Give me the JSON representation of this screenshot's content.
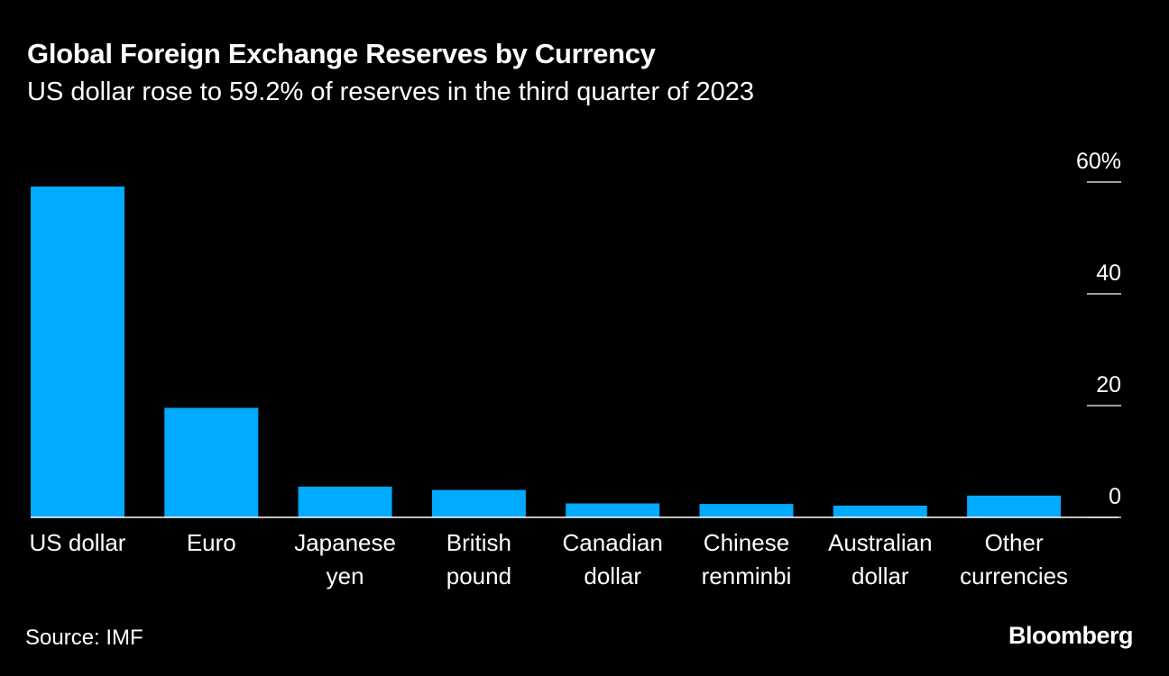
{
  "header": {
    "title": "Global Foreign Exchange Reserves by Currency",
    "subtitle": "US dollar rose to 59.2% of reserves in the third quarter of 2023"
  },
  "footer": {
    "source": "Source: IMF",
    "brand": "Bloomberg"
  },
  "colors": {
    "background": "#000000",
    "bar": "#00aaff",
    "text": "#ffffff"
  },
  "chart_data": {
    "type": "bar",
    "title": "Global Foreign Exchange Reserves by Currency",
    "subtitle": "US dollar rose to 59.2% of reserves in the third quarter of 2023",
    "categories": [
      [
        "US dollar"
      ],
      [
        "Euro"
      ],
      [
        "Japanese",
        "yen"
      ],
      [
        "British",
        "pound"
      ],
      [
        "Canadian",
        "dollar"
      ],
      [
        "Chinese",
        "renminbi"
      ],
      [
        "Australian",
        "dollar"
      ],
      [
        "Other",
        "currencies"
      ]
    ],
    "values": [
      59.2,
      19.6,
      5.5,
      4.9,
      2.5,
      2.4,
      2.1,
      3.9
    ],
    "ylim": [
      0,
      60
    ],
    "yticks": [
      0,
      20,
      40,
      60
    ],
    "ytick_labels": [
      "0",
      "20",
      "40",
      "60%"
    ],
    "yaxis_side": "right",
    "xlabel": "",
    "ylabel": "",
    "grid": false
  }
}
